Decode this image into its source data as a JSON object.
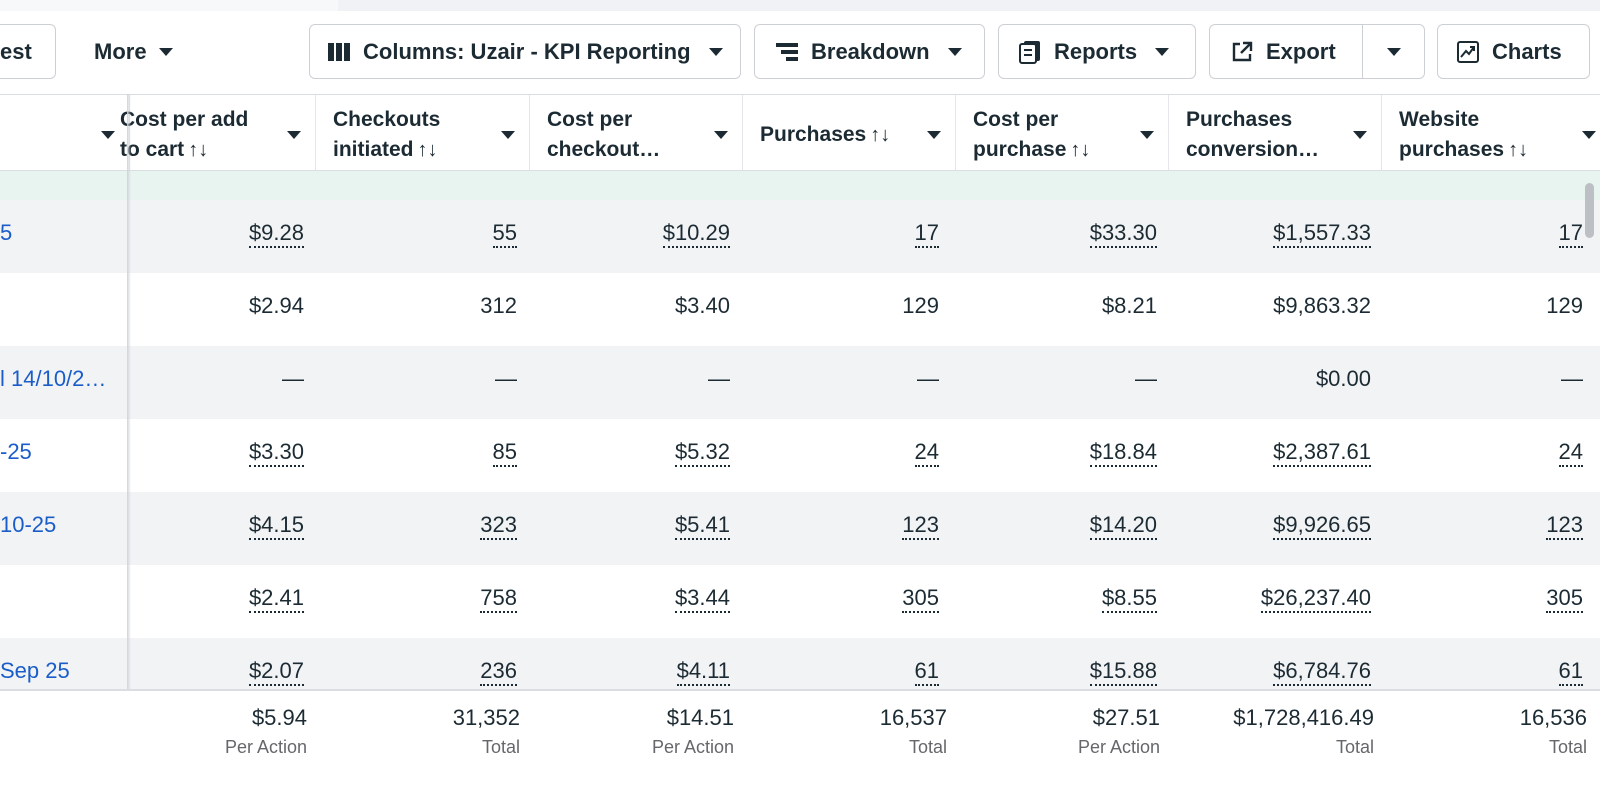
{
  "toolbar": {
    "partial_left_label": "est",
    "more_label": "More",
    "columns_label": "Columns: Uzair - KPI Reporting",
    "breakdown_label": "Breakdown",
    "reports_label": "Reports",
    "export_label": "Export",
    "charts_label": "Charts"
  },
  "columns": [
    {
      "label": "Cost per add to cart",
      "line1": "Cost per add",
      "line2": "to cart",
      "sortable": true
    },
    {
      "label": "Checkouts initiated",
      "line1": "Checkouts",
      "line2": "initiated",
      "sortable": true
    },
    {
      "label": "Cost per checkout…",
      "line1": "Cost per",
      "line2": "checkout…",
      "sortable": false
    },
    {
      "label": "Purchases",
      "line1": "Purchases",
      "line2": "",
      "sortable": true
    },
    {
      "label": "Cost per purchase",
      "line1": "Cost per",
      "line2": "purchase",
      "sortable": true
    },
    {
      "label": "Purchases conversion…",
      "line1": "Purchases",
      "line2": "conversion…",
      "sortable": false
    },
    {
      "label": "Website purchases",
      "line1": "Website",
      "line2": "purchases",
      "sortable": true
    }
  ],
  "rows": [
    {
      "name": "5",
      "underlined": true,
      "cells": [
        "$9.28",
        "55",
        "$10.29",
        "17",
        "$33.30",
        "$1,557.33",
        "17"
      ]
    },
    {
      "name": "",
      "underlined": false,
      "cells": [
        "$2.94",
        "312",
        "$3.40",
        "129",
        "$8.21",
        "$9,863.32",
        "129"
      ]
    },
    {
      "name": "l 14/10/2…",
      "underlined": false,
      "cells": [
        "—",
        "—",
        "—",
        "—",
        "—",
        "$0.00",
        "—"
      ]
    },
    {
      "name": "-25",
      "underlined": true,
      "cells": [
        "$3.30",
        "85",
        "$5.32",
        "24",
        "$18.84",
        "$2,387.61",
        "24"
      ]
    },
    {
      "name": "10-25",
      "underlined": true,
      "cells": [
        "$4.15",
        "323",
        "$5.41",
        "123",
        "$14.20",
        "$9,926.65",
        "123"
      ]
    },
    {
      "name": "",
      "underlined": true,
      "cells": [
        "$2.41",
        "758",
        "$3.44",
        "305",
        "$8.55",
        "$26,237.40",
        "305"
      ]
    },
    {
      "name": "Sep 25",
      "underlined": true,
      "cells": [
        "$2.07",
        "236",
        "$4.11",
        "61",
        "$15.88",
        "$6,784.76",
        "61"
      ]
    }
  ],
  "totals": [
    {
      "value": "$5.94",
      "label": "Per Action"
    },
    {
      "value": "31,352",
      "label": "Total"
    },
    {
      "value": "$14.51",
      "label": "Per Action"
    },
    {
      "value": "16,537",
      "label": "Total"
    },
    {
      "value": "$27.51",
      "label": "Per Action"
    },
    {
      "value": "$1,728,416.49",
      "label": "Total"
    },
    {
      "value": "16,536",
      "label": "Total"
    }
  ],
  "colors": {
    "link": "#1a5dc9",
    "row_shade": "#f2f3f5",
    "highlight_row": "#e8f4f0",
    "border": "#ccd0d5"
  },
  "icons": [
    "columns-icon",
    "breakdown-icon",
    "reports-icon",
    "export-icon",
    "charts-icon",
    "caret-down-icon",
    "sort-icon"
  ]
}
